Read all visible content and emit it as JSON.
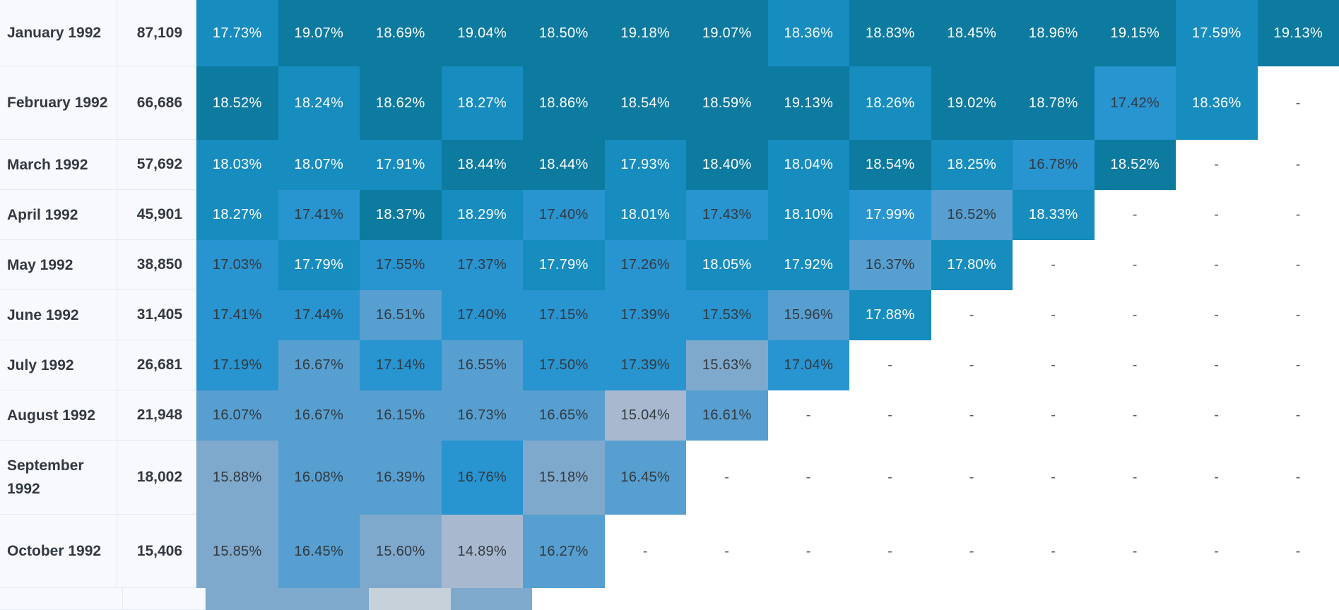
{
  "scale": {
    "colors": {
      "darkest": "#0d7aa0",
      "dark": "#168cbf",
      "medium": "#2894d0",
      "light": "#569fd0",
      "pale": "#7fa9cc",
      "palest": "#a8b9cf",
      "grey": "#c7d1da"
    },
    "text_light": "#ffffff",
    "text_dark": "#333940"
  },
  "rows": [
    {
      "label": "January 1992",
      "count": "87,109",
      "cells": [
        {
          "v": "17.73%",
          "c": "dark"
        },
        {
          "v": "19.07%",
          "c": "darkest"
        },
        {
          "v": "18.69%",
          "c": "darkest"
        },
        {
          "v": "19.04%",
          "c": "darkest"
        },
        {
          "v": "18.50%",
          "c": "darkest"
        },
        {
          "v": "19.18%",
          "c": "darkest"
        },
        {
          "v": "19.07%",
          "c": "darkest"
        },
        {
          "v": "18.36%",
          "c": "dark"
        },
        {
          "v": "18.83%",
          "c": "darkest"
        },
        {
          "v": "18.45%",
          "c": "darkest"
        },
        {
          "v": "18.96%",
          "c": "darkest"
        },
        {
          "v": "19.15%",
          "c": "darkest"
        },
        {
          "v": "17.59%",
          "c": "dark"
        },
        {
          "v": "19.13%",
          "c": "darkest"
        }
      ]
    },
    {
      "label": "February 1992",
      "count": "66,686",
      "cells": [
        {
          "v": "18.52%",
          "c": "darkest"
        },
        {
          "v": "18.24%",
          "c": "dark"
        },
        {
          "v": "18.62%",
          "c": "darkest"
        },
        {
          "v": "18.27%",
          "c": "dark"
        },
        {
          "v": "18.86%",
          "c": "darkest"
        },
        {
          "v": "18.54%",
          "c": "darkest"
        },
        {
          "v": "18.59%",
          "c": "darkest"
        },
        {
          "v": "19.13%",
          "c": "darkest"
        },
        {
          "v": "18.26%",
          "c": "dark"
        },
        {
          "v": "19.02%",
          "c": "darkest"
        },
        {
          "v": "18.78%",
          "c": "darkest"
        },
        {
          "v": "17.42%",
          "c": "medium",
          "t": "dark"
        },
        {
          "v": "18.36%",
          "c": "dark"
        },
        {
          "v": "-",
          "c": "empty"
        }
      ]
    },
    {
      "label": "March 1992",
      "count": "57,692",
      "cells": [
        {
          "v": "18.03%",
          "c": "dark"
        },
        {
          "v": "18.07%",
          "c": "dark"
        },
        {
          "v": "17.91%",
          "c": "dark"
        },
        {
          "v": "18.44%",
          "c": "darkest"
        },
        {
          "v": "18.44%",
          "c": "darkest"
        },
        {
          "v": "17.93%",
          "c": "dark"
        },
        {
          "v": "18.40%",
          "c": "darkest"
        },
        {
          "v": "18.04%",
          "c": "dark"
        },
        {
          "v": "18.54%",
          "c": "darkest"
        },
        {
          "v": "18.25%",
          "c": "dark"
        },
        {
          "v": "16.78%",
          "c": "medium",
          "t": "dark"
        },
        {
          "v": "18.52%",
          "c": "darkest"
        },
        {
          "v": "-",
          "c": "empty"
        },
        {
          "v": "-",
          "c": "empty"
        }
      ]
    },
    {
      "label": "April 1992",
      "count": "45,901",
      "cells": [
        {
          "v": "18.27%",
          "c": "dark"
        },
        {
          "v": "17.41%",
          "c": "medium",
          "t": "dark"
        },
        {
          "v": "18.37%",
          "c": "darkest"
        },
        {
          "v": "18.29%",
          "c": "dark"
        },
        {
          "v": "17.40%",
          "c": "medium",
          "t": "dark"
        },
        {
          "v": "18.01%",
          "c": "dark"
        },
        {
          "v": "17.43%",
          "c": "medium",
          "t": "dark"
        },
        {
          "v": "18.10%",
          "c": "dark"
        },
        {
          "v": "17.99%",
          "c": "medium"
        },
        {
          "v": "16.52%",
          "c": "light",
          "t": "dark"
        },
        {
          "v": "18.33%",
          "c": "dark"
        },
        {
          "v": "-",
          "c": "empty"
        },
        {
          "v": "-",
          "c": "empty"
        },
        {
          "v": "-",
          "c": "empty"
        }
      ]
    },
    {
      "label": "May 1992",
      "count": "38,850",
      "cells": [
        {
          "v": "17.03%",
          "c": "medium",
          "t": "dark"
        },
        {
          "v": "17.79%",
          "c": "dark"
        },
        {
          "v": "17.55%",
          "c": "medium",
          "t": "dark"
        },
        {
          "v": "17.37%",
          "c": "medium",
          "t": "dark"
        },
        {
          "v": "17.79%",
          "c": "dark"
        },
        {
          "v": "17.26%",
          "c": "medium",
          "t": "dark"
        },
        {
          "v": "18.05%",
          "c": "dark"
        },
        {
          "v": "17.92%",
          "c": "dark"
        },
        {
          "v": "16.37%",
          "c": "light",
          "t": "dark"
        },
        {
          "v": "17.80%",
          "c": "dark"
        },
        {
          "v": "-",
          "c": "empty"
        },
        {
          "v": "-",
          "c": "empty"
        },
        {
          "v": "-",
          "c": "empty"
        },
        {
          "v": "-",
          "c": "empty"
        }
      ]
    },
    {
      "label": "June 1992",
      "count": "31,405",
      "cells": [
        {
          "v": "17.41%",
          "c": "medium",
          "t": "dark"
        },
        {
          "v": "17.44%",
          "c": "medium",
          "t": "dark"
        },
        {
          "v": "16.51%",
          "c": "light",
          "t": "dark"
        },
        {
          "v": "17.40%",
          "c": "medium",
          "t": "dark"
        },
        {
          "v": "17.15%",
          "c": "medium",
          "t": "dark"
        },
        {
          "v": "17.39%",
          "c": "medium",
          "t": "dark"
        },
        {
          "v": "17.53%",
          "c": "medium",
          "t": "dark"
        },
        {
          "v": "15.96%",
          "c": "light",
          "t": "dark"
        },
        {
          "v": "17.88%",
          "c": "dark"
        },
        {
          "v": "-",
          "c": "empty"
        },
        {
          "v": "-",
          "c": "empty"
        },
        {
          "v": "-",
          "c": "empty"
        },
        {
          "v": "-",
          "c": "empty"
        },
        {
          "v": "-",
          "c": "empty"
        }
      ]
    },
    {
      "label": "July 1992",
      "count": "26,681",
      "cells": [
        {
          "v": "17.19%",
          "c": "medium",
          "t": "dark"
        },
        {
          "v": "16.67%",
          "c": "light",
          "t": "dark"
        },
        {
          "v": "17.14%",
          "c": "medium",
          "t": "dark"
        },
        {
          "v": "16.55%",
          "c": "light",
          "t": "dark"
        },
        {
          "v": "17.50%",
          "c": "medium",
          "t": "dark"
        },
        {
          "v": "17.39%",
          "c": "medium",
          "t": "dark"
        },
        {
          "v": "15.63%",
          "c": "pale",
          "t": "dark"
        },
        {
          "v": "17.04%",
          "c": "medium",
          "t": "dark"
        },
        {
          "v": "-",
          "c": "empty"
        },
        {
          "v": "-",
          "c": "empty"
        },
        {
          "v": "-",
          "c": "empty"
        },
        {
          "v": "-",
          "c": "empty"
        },
        {
          "v": "-",
          "c": "empty"
        },
        {
          "v": "-",
          "c": "empty"
        }
      ]
    },
    {
      "label": "August 1992",
      "count": "21,948",
      "cells": [
        {
          "v": "16.07%",
          "c": "light",
          "t": "dark"
        },
        {
          "v": "16.67%",
          "c": "light",
          "t": "dark"
        },
        {
          "v": "16.15%",
          "c": "light",
          "t": "dark"
        },
        {
          "v": "16.73%",
          "c": "light",
          "t": "dark"
        },
        {
          "v": "16.65%",
          "c": "light",
          "t": "dark"
        },
        {
          "v": "15.04%",
          "c": "palest",
          "t": "dark"
        },
        {
          "v": "16.61%",
          "c": "light",
          "t": "dark"
        },
        {
          "v": "-",
          "c": "empty"
        },
        {
          "v": "-",
          "c": "empty"
        },
        {
          "v": "-",
          "c": "empty"
        },
        {
          "v": "-",
          "c": "empty"
        },
        {
          "v": "-",
          "c": "empty"
        },
        {
          "v": "-",
          "c": "empty"
        },
        {
          "v": "-",
          "c": "empty"
        }
      ]
    },
    {
      "label": "September 1992",
      "count": "18,002",
      "cells": [
        {
          "v": "15.88%",
          "c": "pale",
          "t": "dark"
        },
        {
          "v": "16.08%",
          "c": "light",
          "t": "dark"
        },
        {
          "v": "16.39%",
          "c": "light",
          "t": "dark"
        },
        {
          "v": "16.76%",
          "c": "medium",
          "t": "dark"
        },
        {
          "v": "15.18%",
          "c": "pale",
          "t": "dark"
        },
        {
          "v": "16.45%",
          "c": "light",
          "t": "dark"
        },
        {
          "v": "-",
          "c": "empty"
        },
        {
          "v": "-",
          "c": "empty"
        },
        {
          "v": "-",
          "c": "empty"
        },
        {
          "v": "-",
          "c": "empty"
        },
        {
          "v": "-",
          "c": "empty"
        },
        {
          "v": "-",
          "c": "empty"
        },
        {
          "v": "-",
          "c": "empty"
        },
        {
          "v": "-",
          "c": "empty"
        }
      ]
    },
    {
      "label": "October 1992",
      "count": "15,406",
      "cells": [
        {
          "v": "15.85%",
          "c": "pale",
          "t": "dark"
        },
        {
          "v": "16.45%",
          "c": "light",
          "t": "dark"
        },
        {
          "v": "15.60%",
          "c": "pale",
          "t": "dark"
        },
        {
          "v": "14.89%",
          "c": "palest",
          "t": "dark"
        },
        {
          "v": "16.27%",
          "c": "light",
          "t": "dark"
        },
        {
          "v": "-",
          "c": "empty"
        },
        {
          "v": "-",
          "c": "empty"
        },
        {
          "v": "-",
          "c": "empty"
        },
        {
          "v": "-",
          "c": "empty"
        },
        {
          "v": "-",
          "c": "empty"
        },
        {
          "v": "-",
          "c": "empty"
        },
        {
          "v": "-",
          "c": "empty"
        },
        {
          "v": "-",
          "c": "empty"
        },
        {
          "v": "-",
          "c": "empty"
        }
      ]
    },
    {
      "label": "",
      "count": "",
      "cells": [
        {
          "v": "",
          "c": "pale"
        },
        {
          "v": "",
          "c": "pale"
        },
        {
          "v": "",
          "c": "grey"
        },
        {
          "v": "",
          "c": "pale"
        }
      ]
    }
  ]
}
